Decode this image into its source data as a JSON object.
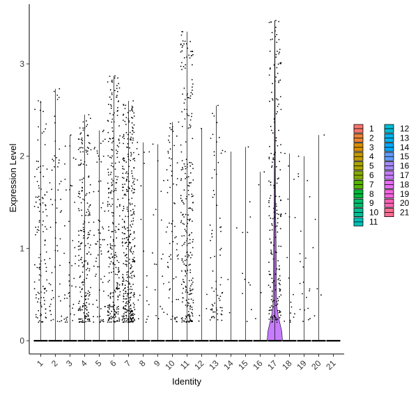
{
  "chart_data": {
    "type": "violin",
    "title": "",
    "xlabel": "Identity",
    "ylabel": "Expression Level",
    "ylim": [
      -0.15,
      3.55
    ],
    "yticks": [
      0,
      1,
      2,
      3
    ],
    "legend_position": "right",
    "categories": [
      "1",
      "2",
      "3",
      "4",
      "5",
      "6",
      "7",
      "8",
      "9",
      "10",
      "11",
      "12",
      "13",
      "14",
      "15",
      "16",
      "17",
      "18",
      "19",
      "20",
      "21"
    ],
    "series": [
      {
        "identity": "1",
        "color": "#F8766D",
        "max": 2.6,
        "nonzero_points": 120
      },
      {
        "identity": "2",
        "color": "#EB8335",
        "max": 2.73,
        "nonzero_points": 60
      },
      {
        "identity": "3",
        "color": "#DA8F00",
        "max": 2.23,
        "nonzero_points": 45
      },
      {
        "identity": "4",
        "color": "#C49A00",
        "max": 2.45,
        "nonzero_points": 220
      },
      {
        "identity": "5",
        "color": "#A9A400",
        "max": 2.28,
        "nonzero_points": 70
      },
      {
        "identity": "6",
        "color": "#86AC00",
        "max": 2.87,
        "nonzero_points": 260
      },
      {
        "identity": "7",
        "color": "#53B400",
        "max": 2.6,
        "nonzero_points": 380
      },
      {
        "identity": "8",
        "color": "#00BA38",
        "max": 2.15,
        "nonzero_points": 20
      },
      {
        "identity": "9",
        "color": "#00BE6C",
        "max": 2.13,
        "nonzero_points": 20
      },
      {
        "identity": "10",
        "color": "#00C094",
        "max": 2.37,
        "nonzero_points": 70
      },
      {
        "identity": "11",
        "color": "#00C0B8",
        "max": 3.35,
        "nonzero_points": 260
      },
      {
        "identity": "12",
        "color": "#00BDD4",
        "max": 2.3,
        "nonzero_points": 5
      },
      {
        "identity": "13",
        "color": "#00B4EF",
        "max": 2.55,
        "nonzero_points": 70
      },
      {
        "identity": "14",
        "color": "#00A8FF",
        "max": 2.05,
        "nonzero_points": 4
      },
      {
        "identity": "15",
        "color": "#619CFF",
        "max": 2.1,
        "nonzero_points": 12
      },
      {
        "identity": "16",
        "color": "#A58AFF",
        "max": 1.83,
        "nonzero_points": 4
      },
      {
        "identity": "17",
        "color": "#C77CFF",
        "max": 3.47,
        "nonzero_points": 210
      },
      {
        "identity": "18",
        "color": "#E76BF3",
        "max": 2.03,
        "nonzero_points": 18
      },
      {
        "identity": "19",
        "color": "#F763E0",
        "max": 2.0,
        "nonzero_points": 22
      },
      {
        "identity": "20",
        "color": "#FF63B6",
        "max": 2.23,
        "nonzero_points": 6
      },
      {
        "identity": "21",
        "color": "#FF6C91",
        "max": 0.0,
        "nonzero_points": 0
      }
    ]
  }
}
